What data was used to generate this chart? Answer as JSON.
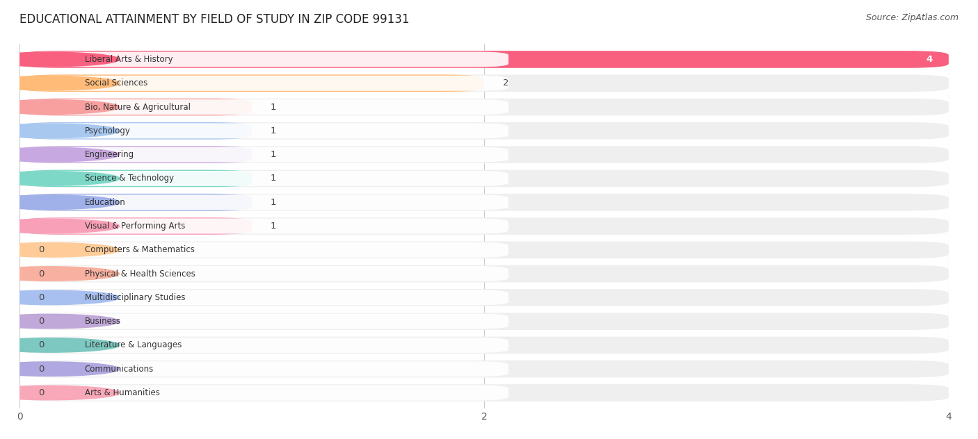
{
  "title": "EDUCATIONAL ATTAINMENT BY FIELD OF STUDY IN ZIP CODE 99131",
  "source": "Source: ZipAtlas.com",
  "categories": [
    "Liberal Arts & History",
    "Social Sciences",
    "Bio, Nature & Agricultural",
    "Psychology",
    "Engineering",
    "Science & Technology",
    "Education",
    "Visual & Performing Arts",
    "Computers & Mathematics",
    "Physical & Health Sciences",
    "Multidisciplinary Studies",
    "Business",
    "Literature & Languages",
    "Communications",
    "Arts & Humanities"
  ],
  "values": [
    4,
    2,
    1,
    1,
    1,
    1,
    1,
    1,
    0,
    0,
    0,
    0,
    0,
    0,
    0
  ],
  "bar_colors": [
    "#F96080",
    "#FFBB77",
    "#F8A0A0",
    "#A8C8F0",
    "#C8A8E0",
    "#7DD8C8",
    "#A0B0E8",
    "#F8A0B8",
    "#FFCC99",
    "#F8B0A0",
    "#A8C0F0",
    "#C0A8D8",
    "#7DC8C0",
    "#B0A8E0",
    "#F8A8B8"
  ],
  "xlim": [
    0,
    4
  ],
  "xticks": [
    0,
    2,
    4
  ],
  "background_color": "#FFFFFF",
  "bar_bg_color": "#EFEFEF",
  "title_fontsize": 12,
  "source_fontsize": 9
}
